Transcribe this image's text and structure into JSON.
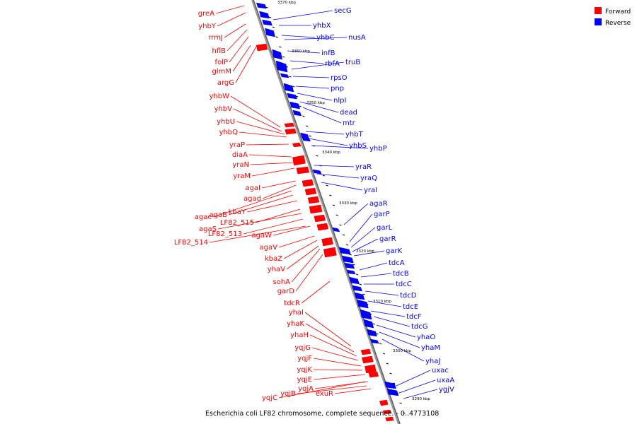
{
  "legend": {
    "forward_label": "Forward",
    "reverse_label": "Reverse",
    "forward_color": "#ff0000",
    "reverse_color": "#0000ff"
  },
  "caption": "Escherichia coli LF82 chromosome, complete sequence. - 0..4773108",
  "ticks": [
    "3370 kbp",
    "3360 kbp",
    "3350 kbp",
    "3340 kbp",
    "3330 kbp",
    "3320 kbp",
    "3310 kbp",
    "3300 kbp",
    "3290 kbp"
  ],
  "forward_genes": [
    "greA",
    "yhbY",
    "rrmJ",
    "hflB",
    "folP",
    "glmM",
    "argG",
    "yhbW",
    "yhbV",
    "yhbU",
    "yhbQ",
    "yraP",
    "diaA",
    "yraN",
    "yraM",
    "agaI",
    "agad",
    "agac",
    "agaB",
    "kbaY",
    "LF82_515",
    "agaS",
    "LF82_513",
    "agaW",
    "LF82_514",
    "agaV",
    "kbaZ",
    "yhaV",
    "sohA",
    "garD",
    "tdcR",
    "yhaI",
    "yhaK",
    "yhaH",
    "yqjG",
    "yqjF",
    "yqjK",
    "yqjE",
    "yqjA",
    "yqjC",
    "yqjB",
    "exuR"
  ],
  "reverse_genes": [
    "secG",
    "yhbX",
    "yhbC",
    "nusA",
    "infB",
    "rbfA",
    "truB",
    "rpsO",
    "pnp",
    "nlpI",
    "dead",
    "mtr",
    "yhbT",
    "yhbS",
    "yhbP",
    "yraR",
    "yraQ",
    "yraI",
    "agaR",
    "garP",
    "garL",
    "garR",
    "garK",
    "tdcA",
    "tdcB",
    "tdcC",
    "tdcD",
    "tdcE",
    "tdcF",
    "tdcG",
    "yhaO",
    "yhaM",
    "yhaJ",
    "uxac",
    "uxaA",
    "ygjV"
  ]
}
